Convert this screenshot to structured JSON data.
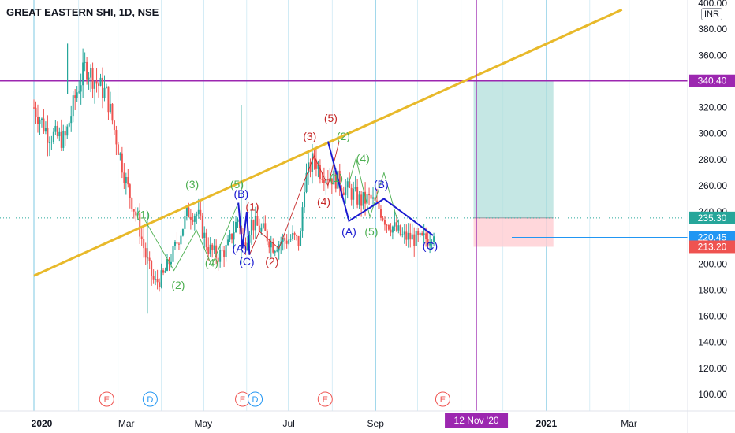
{
  "header": {
    "title": "GREAT EASTERN SHI, 1D, NSE",
    "currency": "INR"
  },
  "colors": {
    "up": "#26a69a",
    "down": "#ef5350",
    "trend": "#e8b92a",
    "level": "#9c27b0",
    "vgrid": "#7ec8e3",
    "target_zone": "#b2dfdb",
    "stop_zone": "#ffcdd2",
    "wave_green": "#4caf50",
    "wave_red": "#c62828",
    "wave_blue": "#1a1ad1",
    "axis_text": "#131722"
  },
  "chart_data": {
    "type": "candlestick",
    "x_ticks": [
      "2020",
      "Mar",
      "May",
      "Jul",
      "Sep",
      "2021",
      "Mar"
    ],
    "y_ticks": [
      "100.00",
      "120.00",
      "140.00",
      "160.00",
      "180.00",
      "200.00",
      "220.00",
      "240.00",
      "260.00",
      "280.00",
      "300.00",
      "320.00",
      "340.00",
      "360.00",
      "380.00",
      "400.00"
    ],
    "ylim": [
      90,
      403
    ],
    "price_labels": [
      {
        "label": "340.40",
        "value": 340.4,
        "kind": "level"
      },
      {
        "label": "235.30",
        "value": 235.3,
        "kind": "up"
      },
      {
        "label": "220.45",
        "value": 220.45,
        "kind": "marker"
      },
      {
        "label": "213.20",
        "value": 213.2,
        "kind": "down"
      }
    ],
    "horizontal_level": 340.4,
    "cursor_date_label": "12 Nov '20",
    "trendline": [
      {
        "d": 0,
        "v": 191
      },
      {
        "d": 420,
        "v": 395
      }
    ],
    "target_zone": {
      "d_from": 314,
      "d_to": 371,
      "top": 340.4,
      "entry": 235.3,
      "stop": 213.2
    },
    "events": [
      {
        "d": 52,
        "label": "E"
      },
      {
        "d": 83,
        "label": "D"
      },
      {
        "d": 149,
        "label": "E"
      },
      {
        "d": 158,
        "label": "D"
      },
      {
        "d": 208,
        "label": "E"
      },
      {
        "d": 292,
        "label": "E"
      }
    ],
    "wave_paths": [
      {
        "color": "wave_green",
        "width": 0.9,
        "points": [
          [
            78,
            236
          ],
          [
            100,
            195
          ],
          [
            116,
            226
          ],
          [
            127,
            199
          ],
          [
            146,
            247
          ]
        ]
      },
      {
        "color": "wave_red",
        "width": 0.9,
        "points": [
          [
            154,
            207
          ],
          [
            161,
            225
          ],
          [
            175,
            212
          ],
          [
            200,
            283
          ],
          [
            210,
            260
          ],
          [
            218,
            294
          ]
        ]
      },
      {
        "color": "wave_green",
        "width": 0.9,
        "points": [
          [
            225,
            262
          ],
          [
            230,
            281
          ],
          [
            240,
            236
          ],
          [
            250,
            270
          ],
          [
            260,
            232
          ]
        ]
      },
      {
        "color": "wave_blue",
        "width": 2,
        "points": [
          [
            146,
            247
          ],
          [
            149,
            212
          ],
          [
            152,
            240
          ],
          [
            154,
            207
          ]
        ]
      },
      {
        "color": "wave_blue",
        "width": 2,
        "points": [
          [
            210,
            294
          ],
          [
            225,
            233
          ],
          [
            250,
            250
          ],
          [
            285,
            222
          ]
        ]
      }
    ],
    "wave_labels": [
      {
        "text": "(1)",
        "d": 78,
        "v": 235,
        "color": "wave_green"
      },
      {
        "text": "(2)",
        "d": 103,
        "v": 181,
        "color": "wave_green"
      },
      {
        "text": "(3)",
        "d": 113,
        "v": 258,
        "color": "wave_green"
      },
      {
        "text": "(4)",
        "d": 127,
        "v": 198,
        "color": "wave_green"
      },
      {
        "text": "(5)",
        "d": 145,
        "v": 258,
        "color": "wave_green"
      },
      {
        "text": "(B)",
        "d": 148,
        "v": 251,
        "color": "wave_blue"
      },
      {
        "text": "(1)",
        "d": 156,
        "v": 241,
        "color": "wave_red"
      },
      {
        "text": "(A)",
        "d": 147,
        "v": 209,
        "color": "wave_blue"
      },
      {
        "text": "(C)",
        "d": 152,
        "v": 199,
        "color": "wave_blue"
      },
      {
        "text": "(2)",
        "d": 170,
        "v": 199,
        "color": "wave_red"
      },
      {
        "text": "(3)",
        "d": 197,
        "v": 295,
        "color": "wave_red"
      },
      {
        "text": "(5)",
        "d": 212,
        "v": 309,
        "color": "wave_red"
      },
      {
        "text": "(2)",
        "d": 221,
        "v": 295,
        "color": "wave_green"
      },
      {
        "text": "(4)",
        "d": 207,
        "v": 245,
        "color": "wave_red"
      },
      {
        "text": "(1)",
        "d": 216,
        "v": 263,
        "color": "wave_green"
      },
      {
        "text": "(4)",
        "d": 235,
        "v": 278,
        "color": "wave_green"
      },
      {
        "text": "(B)",
        "d": 248,
        "v": 258,
        "color": "wave_blue"
      },
      {
        "text": "(A)",
        "d": 225,
        "v": 222,
        "color": "wave_blue"
      },
      {
        "text": "(5)",
        "d": 241,
        "v": 222,
        "color": "wave_green"
      },
      {
        "text": "(C)",
        "d": 283,
        "v": 211,
        "color": "wave_blue"
      }
    ]
  }
}
